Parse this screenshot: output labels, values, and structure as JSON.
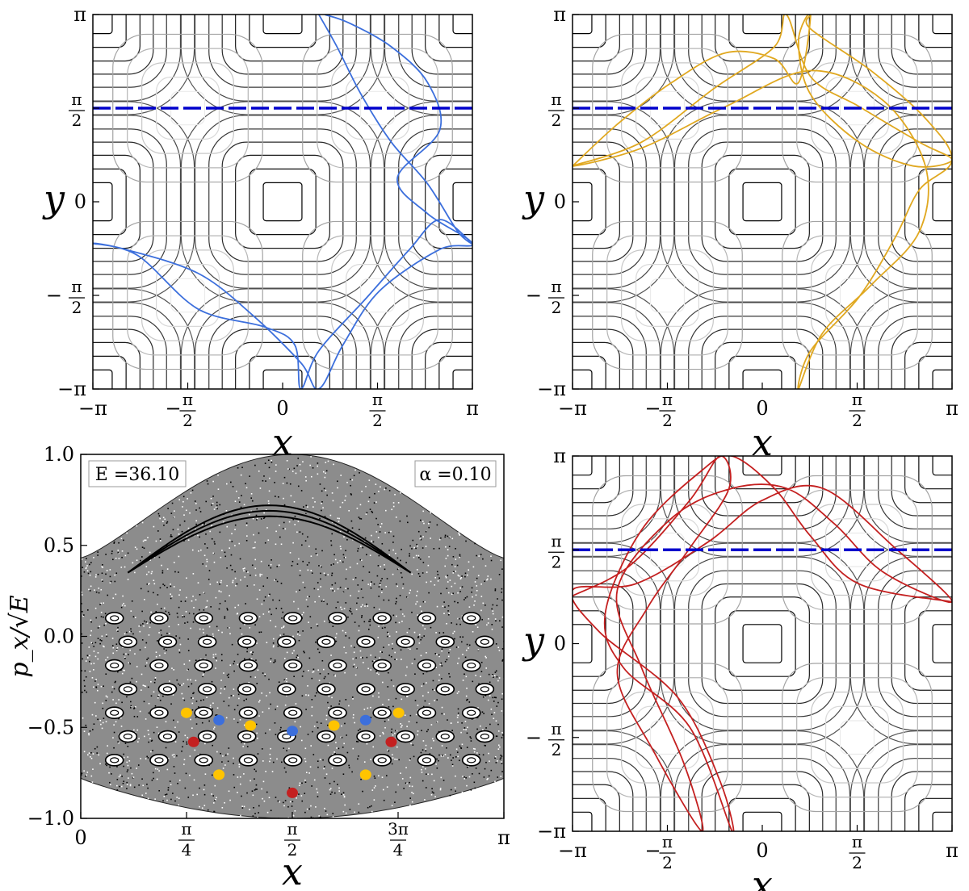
{
  "colors": {
    "dashed_line": "#0000cc",
    "blue_orbit": "#3c6fdc",
    "yellow_orbit": "#e0a820",
    "red_orbit": "#c42020",
    "blue_marker": "#3c6fdc",
    "yellow_marker": "#ffc400",
    "red_marker": "#c42020"
  },
  "chart_data": [
    {
      "id": "top-left",
      "type": "line",
      "xlabel": "x",
      "ylabel": "y",
      "xlim": [
        -3.1416,
        3.1416
      ],
      "ylim": [
        -3.1416,
        3.1416
      ],
      "xticks": [
        "−π",
        "−π/2",
        "0",
        "π/2",
        "π"
      ],
      "yticks": [
        "−π",
        "−π/2",
        "0",
        "π/2",
        "π"
      ],
      "dashed_line_y": 1.5708,
      "orbit_color": "blue_orbit",
      "orbit": [
        [
          0.6,
          3.14
        ],
        [
          0.9,
          2.6
        ],
        [
          1.3,
          1.8
        ],
        [
          1.8,
          1.0
        ],
        [
          2.4,
          0.3
        ],
        [
          2.9,
          -0.5
        ],
        [
          3.14,
          -0.7
        ],
        [
          2.6,
          -0.3
        ],
        [
          2.1,
          -0.8
        ],
        [
          1.4,
          -1.6
        ],
        [
          0.6,
          -2.5
        ],
        [
          0.3,
          -3.14
        ],
        [
          0.2,
          -2.4
        ],
        [
          -0.3,
          -2.1
        ],
        [
          -1.4,
          -1.8
        ],
        [
          -2.4,
          -0.9
        ],
        [
          -3.14,
          -0.7
        ],
        [
          -2.6,
          -0.8
        ],
        [
          -1.4,
          -1.2
        ],
        [
          -0.5,
          -1.9
        ],
        [
          0.3,
          -2.7
        ],
        [
          0.6,
          -3.14
        ],
        [
          1.0,
          -2.4
        ],
        [
          1.6,
          -1.5
        ],
        [
          2.6,
          -0.8
        ],
        [
          3.14,
          -0.7
        ],
        [
          2.4,
          -0.2
        ],
        [
          1.9,
          0.4
        ],
        [
          2.6,
          1.2
        ],
        [
          2.4,
          2.0
        ],
        [
          1.8,
          2.6
        ],
        [
          1.1,
          3.0
        ],
        [
          0.7,
          3.14
        ]
      ],
      "contour_centers": [
        [
          0,
          0
        ],
        [
          3.1416,
          0
        ],
        [
          -3.1416,
          0
        ],
        [
          0,
          3.1416
        ],
        [
          0,
          -3.1416
        ],
        [
          3.1416,
          3.1416
        ],
        [
          -3.1416,
          3.1416
        ],
        [
          3.1416,
          -3.1416
        ],
        [
          -3.1416,
          -3.1416
        ]
      ],
      "light_centers": [
        [
          1.5708,
          1.5708
        ],
        [
          -1.5708,
          1.5708
        ],
        [
          1.5708,
          -1.5708
        ],
        [
          -1.5708,
          -1.5708
        ]
      ]
    },
    {
      "id": "top-right",
      "type": "line",
      "xlabel": "x",
      "ylabel": "y",
      "xlim": [
        -3.1416,
        3.1416
      ],
      "ylim": [
        -3.1416,
        3.1416
      ],
      "xticks": [
        "−π",
        "−π/2",
        "0",
        "π/2",
        "π"
      ],
      "yticks": [
        "−π",
        "−π/2",
        "0",
        "π/2",
        "π"
      ],
      "dashed_line_y": 1.5708,
      "orbit_color": "yellow_orbit",
      "orbit": [
        [
          -3.14,
          0.6
        ],
        [
          -2.4,
          1.3
        ],
        [
          -1.5,
          2.0
        ],
        [
          -0.6,
          2.5
        ],
        [
          0.2,
          2.4
        ],
        [
          0.6,
          2.0
        ],
        [
          0.8,
          3.14
        ],
        [
          0.6,
          2.7
        ],
        [
          0.8,
          1.8
        ],
        [
          1.6,
          1.0
        ],
        [
          2.5,
          0.6
        ],
        [
          3.14,
          0.7
        ],
        [
          2.6,
          1.0
        ],
        [
          1.6,
          1.6
        ],
        [
          0.8,
          2.1
        ],
        [
          0.4,
          3.14
        ],
        [
          0.2,
          2.6
        ],
        [
          -0.8,
          1.9
        ],
        [
          -2.0,
          1.0
        ],
        [
          -3.14,
          0.6
        ],
        [
          -2.0,
          0.9
        ],
        [
          -0.6,
          1.6
        ],
        [
          0.8,
          2.2
        ],
        [
          2.0,
          1.7
        ],
        [
          2.7,
          0.6
        ],
        [
          2.6,
          -0.5
        ],
        [
          1.8,
          -1.4
        ],
        [
          1.0,
          -2.2
        ],
        [
          0.6,
          -3.14
        ],
        [
          0.8,
          -2.5
        ],
        [
          1.6,
          -1.6
        ],
        [
          2.2,
          -0.6
        ],
        [
          2.6,
          0.2
        ],
        [
          3.14,
          0.7
        ],
        [
          2.7,
          1.4
        ],
        [
          1.8,
          2.2
        ],
        [
          0.8,
          2.9
        ],
        [
          0.8,
          3.14
        ]
      ],
      "contour_centers": [
        [
          0,
          0
        ],
        [
          3.1416,
          0
        ],
        [
          -3.1416,
          0
        ],
        [
          0,
          3.1416
        ],
        [
          0,
          -3.1416
        ],
        [
          3.1416,
          3.1416
        ],
        [
          -3.1416,
          3.1416
        ],
        [
          3.1416,
          -3.1416
        ],
        [
          -3.1416,
          -3.1416
        ]
      ],
      "light_centers": [
        [
          1.5708,
          1.5708
        ],
        [
          -1.5708,
          1.5708
        ],
        [
          1.5708,
          -1.5708
        ],
        [
          -1.5708,
          -1.5708
        ]
      ]
    },
    {
      "id": "bottom-right",
      "type": "line",
      "xlabel": "x",
      "ylabel": "y",
      "xlim": [
        -3.1416,
        3.1416
      ],
      "ylim": [
        -3.1416,
        3.1416
      ],
      "xticks": [
        "−π",
        "−π/2",
        "0",
        "π/2",
        "π"
      ],
      "yticks": [
        "−π",
        "−π/2",
        "0",
        "π/2",
        "π"
      ],
      "dashed_line_y": 1.5708,
      "orbit_color": "red_orbit",
      "orbit": [
        [
          -3.14,
          0.8
        ],
        [
          -2.2,
          1.3
        ],
        [
          -1.2,
          2.4
        ],
        [
          -0.7,
          3.14
        ],
        [
          -0.55,
          2.6
        ],
        [
          -1.2,
          1.6
        ],
        [
          -1.9,
          0.6
        ],
        [
          -2.4,
          -0.5
        ],
        [
          -1.8,
          -1.8
        ],
        [
          -1.0,
          -3.14
        ],
        [
          -1.3,
          -2.0
        ],
        [
          -2.0,
          -0.4
        ],
        [
          -2.4,
          0.9
        ],
        [
          -1.5,
          2.1
        ],
        [
          -0.5,
          2.6
        ],
        [
          0.4,
          2.6
        ],
        [
          1.2,
          2.0
        ],
        [
          2.0,
          1.2
        ],
        [
          3.14,
          0.7
        ],
        [
          2.2,
          1.6
        ],
        [
          1.0,
          2.6
        ],
        [
          0.0,
          2.4
        ],
        [
          -0.9,
          1.7
        ],
        [
          -2.1,
          1.0
        ],
        [
          -3.14,
          0.9
        ],
        [
          -2.7,
          0.2
        ],
        [
          -1.4,
          -0.9
        ],
        [
          -0.7,
          -2.3
        ],
        [
          -0.5,
          -3.14
        ],
        [
          -1.2,
          -1.4
        ],
        [
          -2.3,
          -0.4
        ],
        [
          -2.6,
          0.5
        ],
        [
          -2.0,
          1.9
        ],
        [
          -1.0,
          2.9
        ],
        [
          -0.5,
          3.14
        ],
        [
          0.2,
          2.6
        ],
        [
          0.8,
          1.8
        ],
        [
          1.6,
          1.0
        ],
        [
          3.14,
          0.7
        ]
      ],
      "contour_centers": [
        [
          0,
          0
        ],
        [
          3.1416,
          0
        ],
        [
          -3.1416,
          0
        ],
        [
          0,
          3.1416
        ],
        [
          0,
          -3.1416
        ],
        [
          3.1416,
          3.1416
        ],
        [
          -3.1416,
          3.1416
        ],
        [
          3.1416,
          -3.1416
        ],
        [
          -3.1416,
          -3.1416
        ]
      ],
      "light_centers": [
        [
          1.5708,
          1.5708
        ],
        [
          -1.5708,
          1.5708
        ],
        [
          1.5708,
          -1.5708
        ],
        [
          -1.5708,
          -1.5708
        ]
      ]
    },
    {
      "id": "bottom-left",
      "type": "scatter",
      "xlabel": "x",
      "ylabel": "p_x/√E",
      "xlim": [
        0,
        3.1416
      ],
      "ylim": [
        -1.0,
        1.0
      ],
      "xticks": [
        "0",
        "π/4",
        "π/2",
        "3π/4",
        "π"
      ],
      "yticks": [
        "1.0",
        "0.5",
        "0.0",
        "−0.5",
        "−1.0"
      ],
      "annotations": {
        "energy": "E =36.10",
        "alpha": "α =0.10"
      },
      "markers": [
        {
          "series": "blue",
          "x": 1.026,
          "y": -0.46
        },
        {
          "series": "blue",
          "x": 1.5708,
          "y": -0.52
        },
        {
          "series": "blue",
          "x": 2.115,
          "y": -0.46
        },
        {
          "series": "yellow",
          "x": 0.785,
          "y": -0.42
        },
        {
          "series": "yellow",
          "x": 1.26,
          "y": -0.49
        },
        {
          "series": "yellow",
          "x": 1.88,
          "y": -0.49
        },
        {
          "series": "yellow",
          "x": 2.36,
          "y": -0.42
        },
        {
          "series": "yellow",
          "x": 1.026,
          "y": -0.76
        },
        {
          "series": "yellow",
          "x": 2.115,
          "y": -0.76
        },
        {
          "series": "red",
          "x": 0.838,
          "y": -0.58
        },
        {
          "series": "red",
          "x": 2.305,
          "y": -0.58
        },
        {
          "series": "red",
          "x": 1.5708,
          "y": -0.86
        }
      ]
    }
  ]
}
